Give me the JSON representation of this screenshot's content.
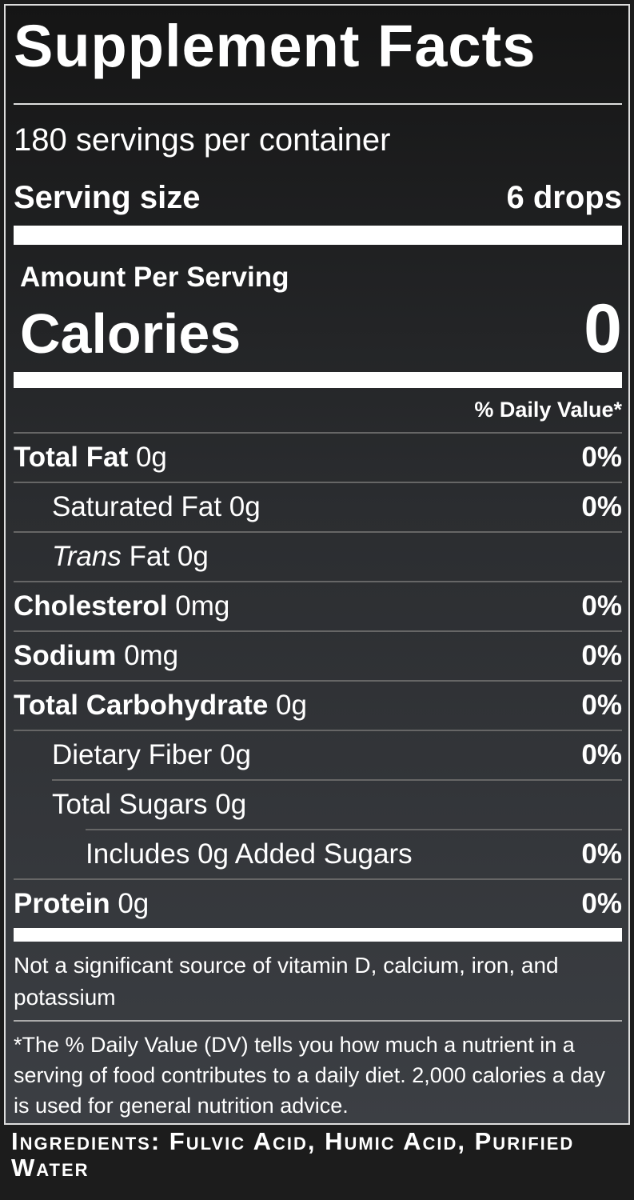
{
  "title": "Supplement Facts",
  "servings": "180 servings per container",
  "serving_size": {
    "label": "Serving size",
    "value": "6 drops"
  },
  "amount_per_serving": "Amount Per Serving",
  "calories": {
    "label": "Calories",
    "value": "0"
  },
  "daily_value_header": "% Daily Value*",
  "rows": [
    {
      "name": "Total Fat",
      "amount": "0g",
      "dv": "0%"
    },
    {
      "text": "Saturated Fat 0g",
      "dv": "0%"
    },
    {
      "italic": "Trans",
      "text": "Fat 0g"
    },
    {
      "name": "Cholesterol",
      "amount": "0mg",
      "dv": "0%"
    },
    {
      "name": "Sodium",
      "amount": "0mg",
      "dv": "0%"
    },
    {
      "name": "Total Carbohydrate",
      "amount": "0g",
      "dv": "0%"
    },
    {
      "text": "Dietary Fiber 0g",
      "dv": "0%"
    },
    {
      "text": "Total Sugars 0g"
    },
    {
      "text": "Includes 0g Added Sugars",
      "dv": "0%"
    },
    {
      "name": "Protein",
      "amount": "0g",
      "dv": "0%"
    }
  ],
  "note": "Not a significant source of vitamin D, calcium, iron, and potassium",
  "footnote": "*The % Daily Value (DV) tells you how much a nutrient in a serving of food contributes to a daily diet. 2,000 calories a day is used for general nutrition advice.",
  "ingredients": {
    "label": "Ingredients:",
    "value": "Fulvic Acid, Humic Acid, Purified Water"
  }
}
